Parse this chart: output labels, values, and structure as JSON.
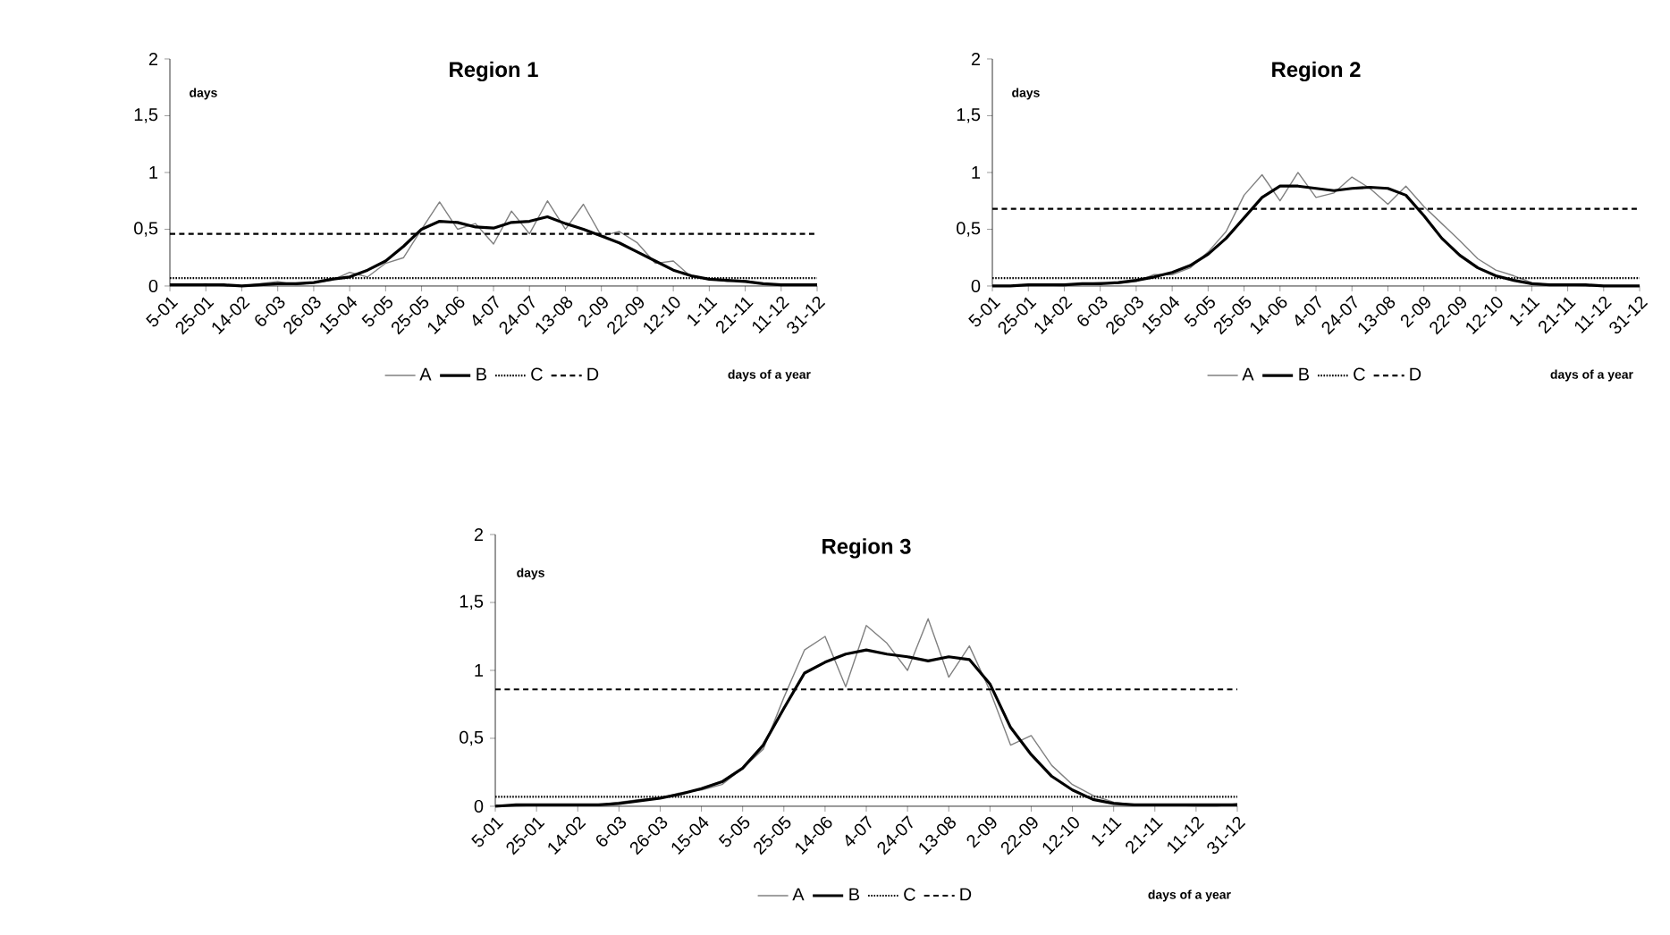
{
  "chart_data": [
    {
      "type": "line",
      "title": "Region 1",
      "ylabel": "days",
      "xlabel": "days of a year",
      "legend": "bottom",
      "categories": [
        "5-01",
        null,
        "25-01",
        null,
        "14-02",
        null,
        "6-03",
        null,
        "26-03",
        null,
        "15-04",
        null,
        "5-05",
        null,
        "25-05",
        null,
        "14-06",
        null,
        "4-07",
        null,
        "24-07",
        null,
        "13-08",
        null,
        "2-09",
        null,
        "22-09",
        null,
        "12-10",
        null,
        "1-11",
        null,
        "21-11",
        null,
        "11-12",
        null,
        "31-12"
      ],
      "ylim": [
        0,
        2
      ],
      "yticks": [
        {
          "value": 0,
          "label": "0"
        },
        {
          "value": 0.5,
          "label": "0,5"
        },
        {
          "value": 1,
          "label": "1"
        },
        {
          "value": 1.5,
          "label": "1,5"
        },
        {
          "value": 2,
          "label": "2"
        }
      ],
      "series": [
        {
          "name": "A",
          "color": "#808080",
          "line_style": "solid",
          "values": [
            0.01,
            0.01,
            0.02,
            0,
            0,
            0.02,
            0.04,
            0.01,
            0.03,
            0.05,
            0.12,
            0.08,
            0.2,
            0.25,
            0.5,
            0.74,
            0.5,
            0.55,
            0.37,
            0.66,
            0.46,
            0.75,
            0.5,
            0.72,
            0.44,
            0.48,
            0.38,
            0.2,
            0.22,
            0.08,
            0.06,
            0.04,
            0.05,
            0.02,
            0.01,
            0.01,
            0.02
          ]
        },
        {
          "name": "B",
          "color": "#000000",
          "line_style": "solid",
          "values": [
            0.01,
            0.01,
            0.01,
            0.01,
            0,
            0.01,
            0.02,
            0.02,
            0.03,
            0.06,
            0.08,
            0.14,
            0.22,
            0.35,
            0.5,
            0.57,
            0.56,
            0.52,
            0.51,
            0.56,
            0.57,
            0.61,
            0.55,
            0.5,
            0.44,
            0.38,
            0.3,
            0.22,
            0.14,
            0.09,
            0.06,
            0.05,
            0.04,
            0.02,
            0.01,
            0.01,
            0.01
          ]
        },
        {
          "name": "C",
          "color": "#000000",
          "line_style": "dotted",
          "values": [
            0.07,
            0.07,
            0.07,
            0.07,
            0.07,
            0.07,
            0.07,
            0.07,
            0.07,
            0.07,
            0.07,
            0.07,
            0.07,
            0.07,
            0.07,
            0.07,
            0.07,
            0.07,
            0.07,
            0.07,
            0.07,
            0.07,
            0.07,
            0.07,
            0.07,
            0.07,
            0.07,
            0.07,
            0.07,
            0.07,
            0.07,
            0.07,
            0.07,
            0.07,
            0.07,
            0.07,
            0.07
          ]
        },
        {
          "name": "D",
          "color": "#000000",
          "line_style": "dashed",
          "values": [
            0.46,
            0.46,
            0.46,
            0.46,
            0.46,
            0.46,
            0.46,
            0.46,
            0.46,
            0.46,
            0.46,
            0.46,
            0.46,
            0.46,
            0.46,
            0.46,
            0.46,
            0.46,
            0.46,
            0.46,
            0.46,
            0.46,
            0.46,
            0.46,
            0.46,
            0.46,
            0.46,
            0.46,
            0.46,
            0.46,
            0.46,
            0.46,
            0.46,
            0.46,
            0.46,
            0.46,
            0.46
          ]
        }
      ]
    },
    {
      "type": "line",
      "title": "Region 2",
      "ylabel": "days",
      "xlabel": "days of a year",
      "legend": "bottom",
      "categories": [
        "5-01",
        null,
        "25-01",
        null,
        "14-02",
        null,
        "6-03",
        null,
        "26-03",
        null,
        "15-04",
        null,
        "5-05",
        null,
        "25-05",
        null,
        "14-06",
        null,
        "4-07",
        null,
        "24-07",
        null,
        "13-08",
        null,
        "2-09",
        null,
        "22-09",
        null,
        "12-10",
        null,
        "1-11",
        null,
        "21-11",
        null,
        "11-12",
        null,
        "31-12"
      ],
      "ylim": [
        0,
        2
      ],
      "yticks": [
        {
          "value": 0,
          "label": "0"
        },
        {
          "value": 0.5,
          "label": "0,5"
        },
        {
          "value": 1,
          "label": "1"
        },
        {
          "value": 1.5,
          "label": "1,5"
        },
        {
          "value": 2,
          "label": "2"
        }
      ],
      "series": [
        {
          "name": "A",
          "color": "#808080",
          "line_style": "solid",
          "values": [
            0,
            0,
            0.01,
            0.01,
            0,
            0.02,
            0.03,
            0.02,
            0.04,
            0.1,
            0.1,
            0.16,
            0.3,
            0.48,
            0.8,
            0.98,
            0.75,
            1.0,
            0.78,
            0.82,
            0.96,
            0.86,
            0.72,
            0.88,
            0.7,
            0.55,
            0.4,
            0.24,
            0.14,
            0.09,
            0.03,
            0.01,
            0.01,
            0,
            0,
            0,
            0
          ]
        },
        {
          "name": "B",
          "color": "#000000",
          "line_style": "solid",
          "values": [
            0,
            0,
            0.01,
            0.01,
            0.01,
            0.02,
            0.02,
            0.03,
            0.05,
            0.08,
            0.12,
            0.18,
            0.28,
            0.42,
            0.6,
            0.78,
            0.88,
            0.88,
            0.86,
            0.84,
            0.86,
            0.87,
            0.86,
            0.8,
            0.62,
            0.42,
            0.27,
            0.16,
            0.09,
            0.05,
            0.02,
            0.01,
            0.01,
            0.01,
            0,
            0,
            0
          ]
        },
        {
          "name": "C",
          "color": "#000000",
          "line_style": "dotted",
          "values": [
            0.07,
            0.07,
            0.07,
            0.07,
            0.07,
            0.07,
            0.07,
            0.07,
            0.07,
            0.07,
            0.07,
            0.07,
            0.07,
            0.07,
            0.07,
            0.07,
            0.07,
            0.07,
            0.07,
            0.07,
            0.07,
            0.07,
            0.07,
            0.07,
            0.07,
            0.07,
            0.07,
            0.07,
            0.07,
            0.07,
            0.07,
            0.07,
            0.07,
            0.07,
            0.07,
            0.07,
            0.07
          ]
        },
        {
          "name": "D",
          "color": "#000000",
          "line_style": "dashed",
          "values": [
            0.68,
            0.68,
            0.68,
            0.68,
            0.68,
            0.68,
            0.68,
            0.68,
            0.68,
            0.68,
            0.68,
            0.68,
            0.68,
            0.68,
            0.68,
            0.68,
            0.68,
            0.68,
            0.68,
            0.68,
            0.68,
            0.68,
            0.68,
            0.68,
            0.68,
            0.68,
            0.68,
            0.68,
            0.68,
            0.68,
            0.68,
            0.68,
            0.68,
            0.68,
            0.68,
            0.68,
            0.68
          ]
        }
      ]
    },
    {
      "type": "line",
      "title": "Region 3",
      "ylabel": "days",
      "xlabel": "days of a year",
      "legend": "bottom",
      "categories": [
        "5-01",
        null,
        "25-01",
        null,
        "14-02",
        null,
        "6-03",
        null,
        "26-03",
        null,
        "15-04",
        null,
        "5-05",
        null,
        "25-05",
        null,
        "14-06",
        null,
        "4-07",
        null,
        "24-07",
        null,
        "13-08",
        null,
        "2-09",
        null,
        "22-09",
        null,
        "12-10",
        null,
        "1-11",
        null,
        "21-11",
        null,
        "11-12",
        null,
        "31-12"
      ],
      "ylim": [
        0,
        2
      ],
      "yticks": [
        {
          "value": 0,
          "label": "0"
        },
        {
          "value": 0.5,
          "label": "0,5"
        },
        {
          "value": 1,
          "label": "1"
        },
        {
          "value": 1.5,
          "label": "1,5"
        },
        {
          "value": 2,
          "label": "2"
        }
      ],
      "series": [
        {
          "name": "A",
          "color": "#808080",
          "line_style": "solid",
          "values": [
            0.01,
            0,
            0.01,
            0.01,
            0.01,
            0.01,
            0.03,
            0.05,
            0.06,
            0.1,
            0.12,
            0.16,
            0.28,
            0.42,
            0.8,
            1.15,
            1.25,
            0.88,
            1.33,
            1.2,
            1.0,
            1.38,
            0.95,
            1.18,
            0.85,
            0.45,
            0.52,
            0.3,
            0.16,
            0.08,
            0.03,
            0.01,
            0.01,
            0.01,
            0,
            0,
            0.02
          ]
        },
        {
          "name": "B",
          "color": "#000000",
          "line_style": "solid",
          "values": [
            0,
            0.01,
            0.01,
            0.01,
            0.01,
            0.01,
            0.02,
            0.04,
            0.06,
            0.09,
            0.13,
            0.18,
            0.28,
            0.45,
            0.72,
            0.98,
            1.06,
            1.12,
            1.15,
            1.12,
            1.1,
            1.07,
            1.1,
            1.08,
            0.9,
            0.58,
            0.38,
            0.22,
            0.12,
            0.05,
            0.02,
            0.01,
            0.01,
            0.01,
            0.01,
            0.01,
            0.01
          ]
        },
        {
          "name": "C",
          "color": "#000000",
          "line_style": "dotted",
          "values": [
            0.07,
            0.07,
            0.07,
            0.07,
            0.07,
            0.07,
            0.07,
            0.07,
            0.07,
            0.07,
            0.07,
            0.07,
            0.07,
            0.07,
            0.07,
            0.07,
            0.07,
            0.07,
            0.07,
            0.07,
            0.07,
            0.07,
            0.07,
            0.07,
            0.07,
            0.07,
            0.07,
            0.07,
            0.07,
            0.07,
            0.07,
            0.07,
            0.07,
            0.07,
            0.07,
            0.07,
            0.07
          ]
        },
        {
          "name": "D",
          "color": "#000000",
          "line_style": "dashed",
          "values": [
            0.86,
            0.86,
            0.86,
            0.86,
            0.86,
            0.86,
            0.86,
            0.86,
            0.86,
            0.86,
            0.86,
            0.86,
            0.86,
            0.86,
            0.86,
            0.86,
            0.86,
            0.86,
            0.86,
            0.86,
            0.86,
            0.86,
            0.86,
            0.86,
            0.86,
            0.86,
            0.86,
            0.86,
            0.86,
            0.86,
            0.86,
            0.86,
            0.86,
            0.86,
            0.86,
            0.86,
            0.86
          ]
        }
      ]
    }
  ]
}
